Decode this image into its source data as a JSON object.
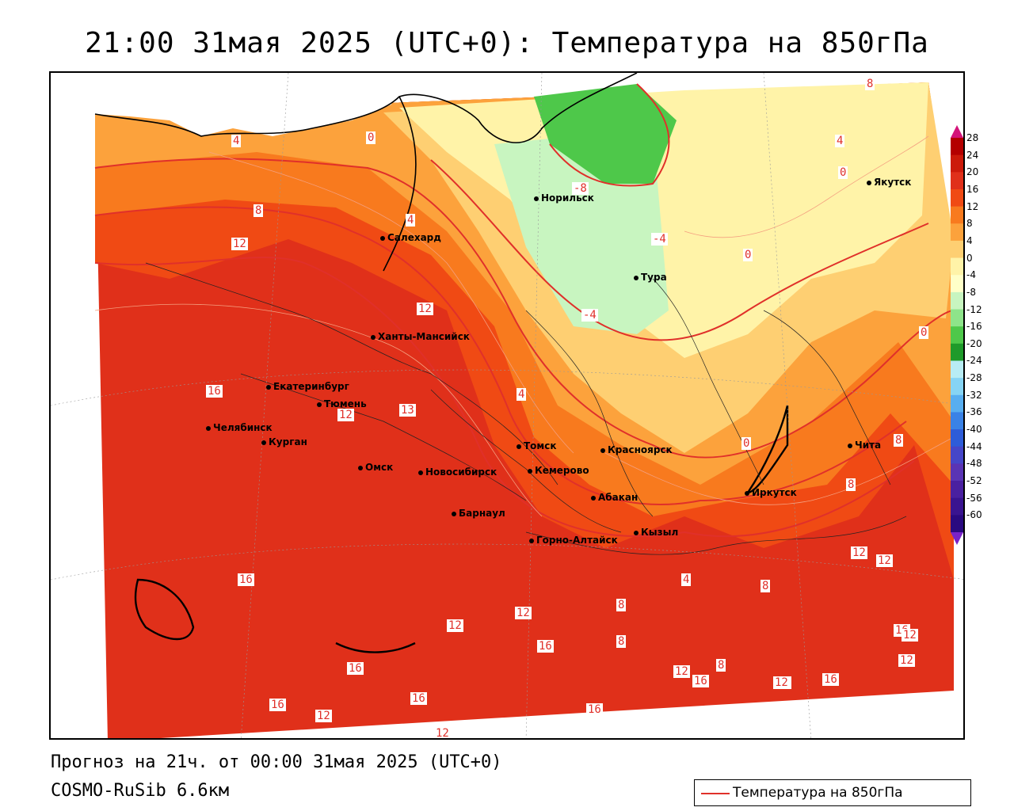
{
  "title": "21:00 31мая 2025 (UTC+0): Температура на 850гПа",
  "footer": {
    "forecast": "Прогноз на 21ч. от 00:00 31мая 2025 (UTC+0)",
    "model": "COSMO-RuSib 6.6км"
  },
  "legend": {
    "label": "Температура на 850гПа",
    "line_color": "#e0302a"
  },
  "colorbar": {
    "ticks": [
      "28",
      "24",
      "20",
      "16",
      "12",
      "8",
      "4",
      "0",
      "-4",
      "-8",
      "-12",
      "-16",
      "-20",
      "-24",
      "-28",
      "-32",
      "-36",
      "-40",
      "-44",
      "-48",
      "-52",
      "-56",
      "-60"
    ],
    "colors": [
      "#b40000",
      "#cc1a0a",
      "#e0301a",
      "#f04a14",
      "#f87a1e",
      "#fca23c",
      "#fecf72",
      "#fff3a8",
      "#ffffc8",
      "#c8f5c0",
      "#8ee48a",
      "#4ec84a",
      "#1e9a2a",
      "#b8ecf4",
      "#86d4f4",
      "#58aef0",
      "#3a82e6",
      "#2e5cd8",
      "#4646c8",
      "#5a34b4",
      "#4a20a0",
      "#3a1490",
      "#2a0a80"
    ],
    "top_color": "#d4147a",
    "bottom_color": "#7a22c8"
  },
  "cities": [
    {
      "name": "Норильск"
    },
    {
      "name": "Якутск"
    },
    {
      "name": "Салехард"
    },
    {
      "name": "Тура"
    },
    {
      "name": "Ханты-Мансийск"
    },
    {
      "name": "Екатеринбург"
    },
    {
      "name": "Тюмень"
    },
    {
      "name": "Челябинск"
    },
    {
      "name": "Курган"
    },
    {
      "name": "Омск"
    },
    {
      "name": "Томск"
    },
    {
      "name": "Красноярск"
    },
    {
      "name": "Новосибирск"
    },
    {
      "name": "Кемерово"
    },
    {
      "name": "Абакан"
    },
    {
      "name": "Иркутск"
    },
    {
      "name": "Чита"
    },
    {
      "name": "Барнаул"
    },
    {
      "name": "Кызыл"
    },
    {
      "name": "Горно-Алтайск"
    }
  ],
  "contour_labels": [
    "4",
    "0",
    "8",
    "4",
    "0",
    "-8",
    "8",
    "-4",
    "0",
    "12",
    "4",
    "-4",
    "12",
    "0",
    "16",
    "4",
    "12",
    "13",
    "0",
    "8",
    "8",
    "12",
    "12",
    "16",
    "12",
    "4",
    "8",
    "12",
    "8",
    "8",
    "16",
    "16",
    "12",
    "16",
    "12",
    "12",
    "16",
    "16",
    "16",
    "16",
    "12",
    "12",
    "12",
    "12",
    "16",
    "8"
  ]
}
